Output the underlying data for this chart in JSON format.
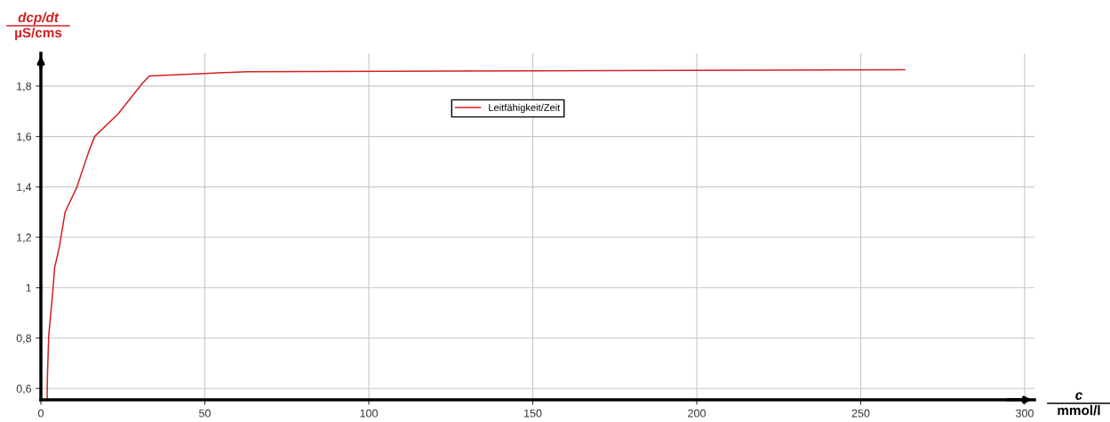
{
  "chart_data": {
    "type": "line",
    "xlabel": "c\nmmol/l",
    "ylabel": "dcp/dt\nµS/cms",
    "xlim": [
      0,
      303
    ],
    "ylim": [
      0.555,
      1.93
    ],
    "xticks": [
      0,
      50,
      100,
      150,
      200,
      250,
      300
    ],
    "yticks": [
      {
        "value": 0.6,
        "label": "0,6"
      },
      {
        "value": 0.8,
        "label": "0,8"
      },
      {
        "value": 1,
        "label": "1"
      },
      {
        "value": 1.2,
        "label": "1,2"
      },
      {
        "value": 1.4,
        "label": "1,4"
      },
      {
        "value": 1.6,
        "label": "1,6"
      },
      {
        "value": 1.8,
        "label": "1,8"
      }
    ],
    "grid": true,
    "legend": "top",
    "marker": "none",
    "line_style": "solid",
    "series": [
      {
        "name": "Leitfähigkeit/Zeit",
        "color": "#d42020",
        "x": [
          0.3,
          1.9,
          2.0,
          2.4,
          3.6,
          4.2,
          5.6,
          7.4,
          11.0,
          14.6,
          16.4,
          23.6,
          30.9,
          33.1,
          50,
          62.6,
          263.4
        ],
        "values": [
          0.556,
          0.556,
          0.65,
          0.81,
          0.98,
          1.08,
          1.16,
          1.3,
          1.4,
          1.54,
          1.6,
          1.69,
          1.81,
          1.84,
          1.85,
          1.857,
          1.865
        ]
      }
    ]
  }
}
